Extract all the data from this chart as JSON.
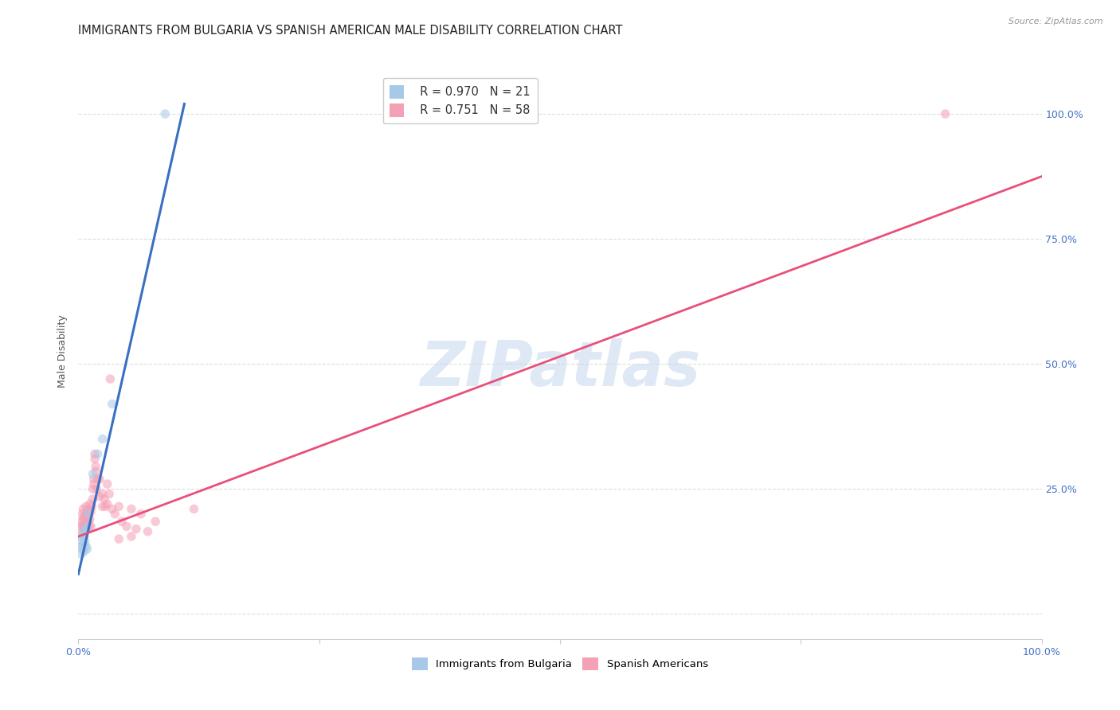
{
  "title": "IMMIGRANTS FROM BULGARIA VS SPANISH AMERICAN MALE DISABILITY CORRELATION CHART",
  "source": "Source: ZipAtlas.com",
  "ylabel": "Male Disability",
  "legend_blue_r": "R = 0.970",
  "legend_blue_n": "N = 21",
  "legend_pink_r": "R = 0.751",
  "legend_pink_n": "N = 58",
  "watermark": "ZIPatlas",
  "blue_color": "#a8c8e8",
  "pink_color": "#f4a0b5",
  "blue_line_color": "#3a6fc4",
  "pink_line_color": "#e8507a",
  "blue_points": [
    [
      0.002,
      0.155
    ],
    [
      0.003,
      0.135
    ],
    [
      0.003,
      0.12
    ],
    [
      0.004,
      0.145
    ],
    [
      0.004,
      0.13
    ],
    [
      0.005,
      0.16
    ],
    [
      0.005,
      0.14
    ],
    [
      0.006,
      0.155
    ],
    [
      0.006,
      0.125
    ],
    [
      0.007,
      0.165
    ],
    [
      0.007,
      0.145
    ],
    [
      0.008,
      0.17
    ],
    [
      0.008,
      0.135
    ],
    [
      0.009,
      0.175
    ],
    [
      0.009,
      0.13
    ],
    [
      0.01,
      0.2
    ],
    [
      0.015,
      0.28
    ],
    [
      0.02,
      0.32
    ],
    [
      0.025,
      0.35
    ],
    [
      0.035,
      0.42
    ],
    [
      0.09,
      1.0
    ]
  ],
  "pink_points": [
    [
      0.002,
      0.175
    ],
    [
      0.003,
      0.185
    ],
    [
      0.003,
      0.16
    ],
    [
      0.004,
      0.2
    ],
    [
      0.004,
      0.175
    ],
    [
      0.005,
      0.19
    ],
    [
      0.005,
      0.21
    ],
    [
      0.006,
      0.175
    ],
    [
      0.006,
      0.195
    ],
    [
      0.007,
      0.185
    ],
    [
      0.007,
      0.17
    ],
    [
      0.008,
      0.2
    ],
    [
      0.008,
      0.215
    ],
    [
      0.009,
      0.175
    ],
    [
      0.009,
      0.195
    ],
    [
      0.01,
      0.21
    ],
    [
      0.01,
      0.185
    ],
    [
      0.011,
      0.2
    ],
    [
      0.011,
      0.175
    ],
    [
      0.012,
      0.22
    ],
    [
      0.012,
      0.19
    ],
    [
      0.013,
      0.205
    ],
    [
      0.013,
      0.175
    ],
    [
      0.014,
      0.215
    ],
    [
      0.015,
      0.23
    ],
    [
      0.015,
      0.25
    ],
    [
      0.016,
      0.27
    ],
    [
      0.016,
      0.26
    ],
    [
      0.017,
      0.32
    ],
    [
      0.017,
      0.31
    ],
    [
      0.018,
      0.295
    ],
    [
      0.018,
      0.285
    ],
    [
      0.019,
      0.25
    ],
    [
      0.02,
      0.27
    ],
    [
      0.022,
      0.235
    ],
    [
      0.022,
      0.27
    ],
    [
      0.025,
      0.215
    ],
    [
      0.025,
      0.24
    ],
    [
      0.027,
      0.23
    ],
    [
      0.028,
      0.215
    ],
    [
      0.03,
      0.26
    ],
    [
      0.03,
      0.22
    ],
    [
      0.032,
      0.24
    ],
    [
      0.033,
      0.47
    ],
    [
      0.035,
      0.21
    ],
    [
      0.038,
      0.2
    ],
    [
      0.042,
      0.215
    ],
    [
      0.042,
      0.15
    ],
    [
      0.045,
      0.185
    ],
    [
      0.05,
      0.175
    ],
    [
      0.055,
      0.21
    ],
    [
      0.055,
      0.155
    ],
    [
      0.06,
      0.17
    ],
    [
      0.065,
      0.2
    ],
    [
      0.072,
      0.165
    ],
    [
      0.08,
      0.185
    ],
    [
      0.12,
      0.21
    ],
    [
      0.9,
      1.0
    ]
  ],
  "blue_line_x": [
    0.0,
    0.11
  ],
  "blue_line_y": [
    0.08,
    1.02
  ],
  "pink_line_x": [
    0.0,
    1.0
  ],
  "pink_line_y": [
    0.155,
    0.875
  ],
  "xlim": [
    0.0,
    1.0
  ],
  "ylim": [
    -0.05,
    1.1
  ],
  "grid_yticks": [
    0.0,
    0.25,
    0.5,
    0.75,
    1.0
  ],
  "grid_color": "#dddddd",
  "background_color": "#ffffff",
  "title_fontsize": 10.5,
  "axis_label_fontsize": 9,
  "tick_fontsize": 9,
  "marker_size": 70,
  "marker_alpha": 0.55
}
